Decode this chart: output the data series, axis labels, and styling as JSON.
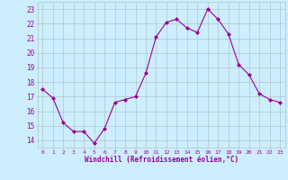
{
  "x": [
    0,
    1,
    2,
    3,
    4,
    5,
    6,
    7,
    8,
    9,
    10,
    11,
    12,
    13,
    14,
    15,
    16,
    17,
    18,
    19,
    20,
    21,
    22,
    23
  ],
  "y": [
    17.5,
    16.9,
    15.2,
    14.6,
    14.6,
    13.8,
    14.8,
    16.6,
    16.8,
    17.0,
    18.6,
    21.1,
    22.1,
    22.3,
    21.7,
    21.4,
    23.0,
    22.3,
    21.3,
    19.2,
    18.5,
    17.2,
    16.8,
    16.6
  ],
  "line_color": "#990099",
  "marker": "D",
  "marker_size": 2.0,
  "bg_color": "#cceeff",
  "grid_color": "#aabbbb",
  "xlabel": "Windchill (Refroidissement éolien,°C)",
  "xlabel_color": "#990099",
  "tick_color": "#990099",
  "ylim": [
    13.5,
    23.5
  ],
  "xlim": [
    -0.5,
    23.5
  ],
  "yticks": [
    14,
    15,
    16,
    17,
    18,
    19,
    20,
    21,
    22,
    23
  ],
  "xticks": [
    0,
    1,
    2,
    3,
    4,
    5,
    6,
    7,
    8,
    9,
    10,
    11,
    12,
    13,
    14,
    15,
    16,
    17,
    18,
    19,
    20,
    21,
    22,
    23
  ],
  "xtick_labels": [
    "0",
    "1",
    "2",
    "3",
    "4",
    "5",
    "6",
    "7",
    "8",
    "9",
    "10",
    "11",
    "12",
    "13",
    "14",
    "15",
    "16",
    "17",
    "18",
    "19",
    "20",
    "21",
    "22",
    "23"
  ]
}
